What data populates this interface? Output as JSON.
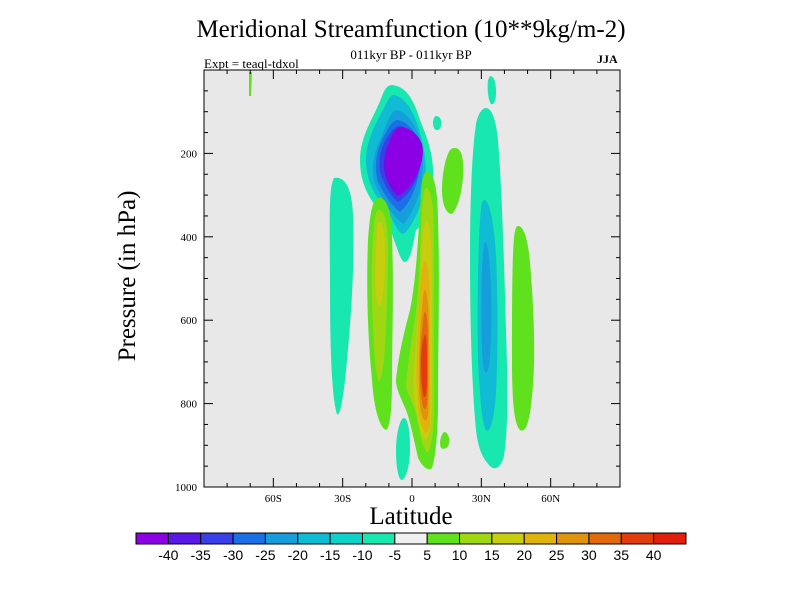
{
  "chart_data": {
    "type": "contour",
    "title": "Meridional Streamfunction (10**9kg/m-2)",
    "subtitle": "011kyr BP - 011kyr BP",
    "experiment": "Expt = teaql-tdxol",
    "season": "JJA",
    "xlabel": "Latitude",
    "ylabel": "Pressure (in hPa)",
    "xlim": [
      -90,
      90
    ],
    "ylim": [
      1000,
      0
    ],
    "x_ticks": [
      {
        "value": -60,
        "label": "60S"
      },
      {
        "value": -30,
        "label": "30S"
      },
      {
        "value": 0,
        "label": "0"
      },
      {
        "value": 30,
        "label": "30N"
      },
      {
        "value": 60,
        "label": "60N"
      }
    ],
    "y_ticks": [
      {
        "value": 200,
        "label": "200"
      },
      {
        "value": 400,
        "label": "400"
      },
      {
        "value": 600,
        "label": "600"
      },
      {
        "value": 800,
        "label": "800"
      },
      {
        "value": 1000,
        "label": "1000"
      }
    ],
    "colorbar": {
      "levels": [
        "-40",
        "-35",
        "-30",
        "-25",
        "-20",
        "-15",
        "-10",
        "-5",
        "5",
        "10",
        "15",
        "20",
        "25",
        "30",
        "35",
        "40"
      ],
      "colors": [
        "#8b00e5",
        "#5a18e6",
        "#3a40e8",
        "#1a70e4",
        "#159ed9",
        "#10bcd4",
        "#0ed1c8",
        "#18e8b0",
        "#f0f0f0",
        "#5fe11d",
        "#9fd812",
        "#c9cd0f",
        "#e0b40c",
        "#e0930c",
        "#e06a0c",
        "#e03c0c",
        "#e0200c"
      ]
    },
    "background_color": "#e8e8e8",
    "features": [
      {
        "name": "negative-cell-upper",
        "lat_range": [
          -18,
          10
        ],
        "p_range": [
          0,
          300
        ],
        "min_level": -40,
        "center_lat": -5,
        "center_p": 185
      },
      {
        "name": "positive-cell-equator",
        "lat_range": [
          -5,
          12
        ],
        "p_range": [
          260,
          980
        ],
        "max_level": 40,
        "center_lat": 5,
        "center_p": 680
      },
      {
        "name": "positive-band-south",
        "lat_range": [
          -20,
          -5
        ],
        "p_range": [
          300,
          850
        ],
        "max_level": 15
      },
      {
        "name": "negative-band-south",
        "lat_range": [
          -33,
          -25
        ],
        "p_range": [
          230,
          840
        ],
        "min_level": -10
      },
      {
        "name": "negative-band-north",
        "lat_range": [
          28,
          45
        ],
        "p_range": [
          40,
          900
        ],
        "min_level": -20
      },
      {
        "name": "positive-band-north",
        "lat_range": [
          45,
          55
        ],
        "p_range": [
          430,
          810
        ],
        "max_level": 5
      }
    ]
  }
}
